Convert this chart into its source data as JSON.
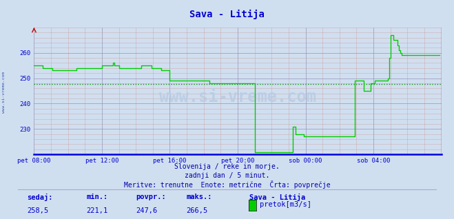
{
  "title": "Sava - Litija",
  "title_color": "#0000cc",
  "background_color": "#d0dff0",
  "plot_bg_color": "#d0dff0",
  "line_color": "#00cc00",
  "avg_line_color": "#008800",
  "avg_value": 247.6,
  "axis_color": "#0000cc",
  "grid_color_major": "#9999bb",
  "grid_color_minor": "#cc9999",
  "x_tick_labels": [
    "pet 08:00",
    "pet 12:00",
    "pet 16:00",
    "pet 20:00",
    "sob 00:00",
    "sob 04:00"
  ],
  "x_tick_positions": [
    0,
    48,
    96,
    144,
    192,
    240
  ],
  "y_ticks": [
    230,
    240,
    250,
    260
  ],
  "ylim_min": 220.0,
  "ylim_max": 270.0,
  "xlim_min": 0,
  "xlim_max": 288,
  "footer_line1": "Slovenija / reke in morje.",
  "footer_line2": "zadnji dan / 5 minut.",
  "footer_line3": "Meritve: trenutne  Enote: metrične  Črta: povprečje",
  "footer_color": "#0000aa",
  "stats_labels": [
    "sedaj:",
    "min.:",
    "povpr.:",
    "maks.:"
  ],
  "stats_values": [
    "258,5",
    "221,1",
    "247,6",
    "266,5"
  ],
  "legend_label": "pretok[m3/s]",
  "legend_title": "Sava - Litija",
  "watermark": "www.si-vreme.com",
  "sidebar_text": "www.si-vreme.com",
  "data_y": [
    255,
    255,
    255,
    255,
    255,
    255,
    254,
    254,
    254,
    254,
    254,
    254,
    254,
    253,
    253,
    253,
    253,
    253,
    253,
    253,
    253,
    253,
    253,
    253,
    253,
    253,
    253,
    253,
    253,
    253,
    254,
    254,
    254,
    254,
    254,
    254,
    254,
    254,
    254,
    254,
    254,
    254,
    254,
    254,
    254,
    254,
    254,
    254,
    255,
    255,
    255,
    255,
    255,
    255,
    255,
    255,
    256,
    255,
    255,
    255,
    254,
    254,
    254,
    254,
    254,
    254,
    254,
    254,
    254,
    254,
    254,
    254,
    254,
    254,
    254,
    254,
    255,
    255,
    255,
    255,
    255,
    255,
    255,
    254,
    254,
    254,
    254,
    254,
    254,
    254,
    253,
    253,
    253,
    253,
    253,
    253,
    249,
    249,
    249,
    249,
    249,
    249,
    249,
    249,
    249,
    249,
    249,
    249,
    249,
    249,
    249,
    249,
    249,
    249,
    249,
    249,
    249,
    249,
    249,
    249,
    249,
    249,
    249,
    249,
    248,
    248,
    248,
    248,
    248,
    248,
    248,
    248,
    248,
    248,
    248,
    248,
    248,
    248,
    248,
    248,
    248,
    248,
    248,
    248,
    248,
    248,
    248,
    248,
    248,
    248,
    248,
    248,
    248,
    248,
    248,
    248,
    221,
    221,
    221,
    221,
    221,
    221,
    221,
    221,
    221,
    221,
    221,
    221,
    221,
    221,
    221,
    221,
    221,
    221,
    221,
    221,
    221,
    221,
    221,
    221,
    221,
    221,
    221,
    231,
    231,
    228,
    228,
    228,
    228,
    228,
    228,
    227,
    227,
    227,
    227,
    227,
    227,
    227,
    227,
    227,
    227,
    227,
    227,
    227,
    227,
    227,
    227,
    227,
    227,
    227,
    227,
    227,
    227,
    227,
    227,
    227,
    227,
    227,
    227,
    227,
    227,
    227,
    227,
    227,
    227,
    227,
    227,
    249,
    249,
    249,
    249,
    249,
    249,
    245,
    245,
    245,
    245,
    245,
    248,
    248,
    248,
    249,
    249,
    249,
    249,
    249,
    249,
    249,
    249,
    249,
    250,
    258,
    267,
    267,
    265,
    265,
    265,
    263,
    261,
    260,
    259,
    259,
    259,
    259,
    259,
    259,
    259,
    259,
    259,
    259,
    259,
    259,
    259,
    259,
    259,
    259,
    259,
    259,
    259,
    259,
    259,
    259,
    259,
    259,
    259,
    259,
    259,
    259
  ]
}
